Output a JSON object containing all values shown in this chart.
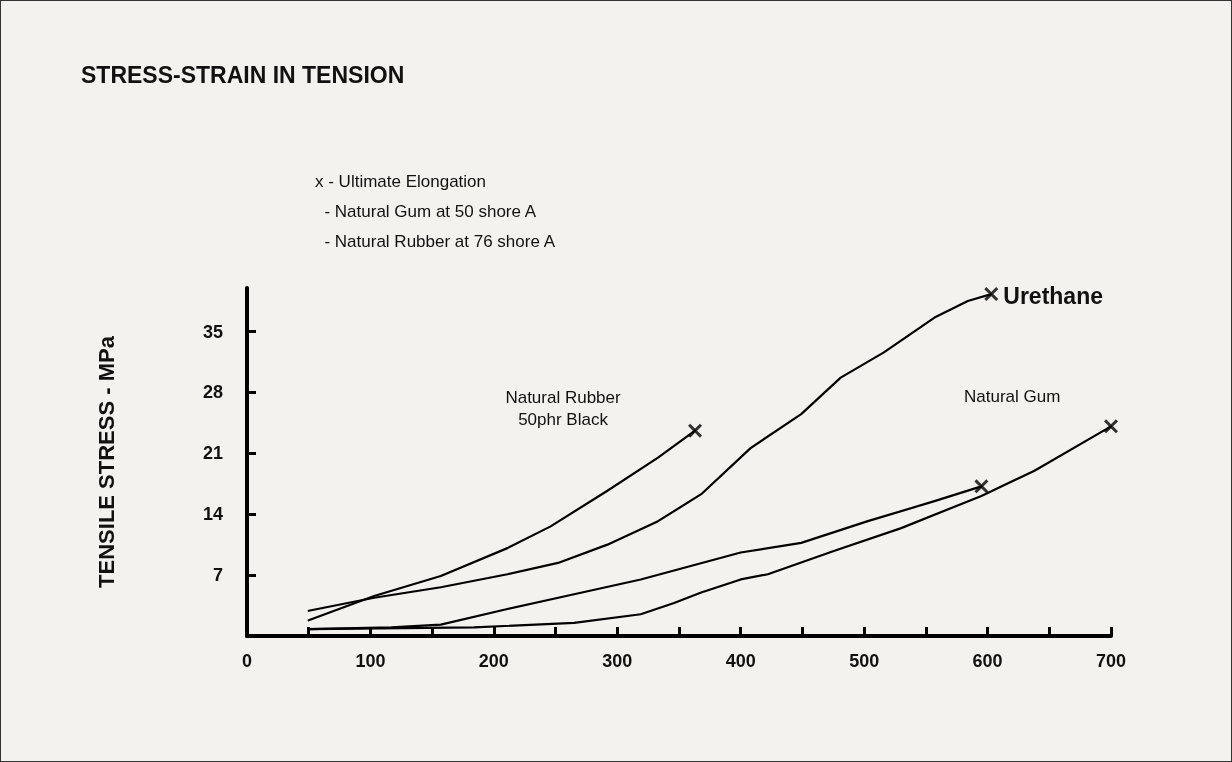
{
  "chart_data": {
    "type": "line",
    "title": "STRESS-STRAIN IN TENSION",
    "ylabel": "TENSILE STRESS - MPa",
    "annotations": [
      "x - Ultimate Elongation",
      "  - Natural Gum at 50 shore A",
      "  - Natural Rubber at 76 shore A"
    ],
    "xlim": [
      0,
      700
    ],
    "xticks": [
      0,
      {
        "value": 50,
        "label": null
      },
      100,
      {
        "value": 150,
        "label": null
      },
      200,
      {
        "value": 250,
        "label": null
      },
      300,
      {
        "value": 350,
        "label": null
      },
      400,
      {
        "value": 450,
        "label": null
      },
      500,
      {
        "value": 550,
        "label": null
      },
      600,
      {
        "value": 650,
        "label": null
      },
      700
    ],
    "ylim": [
      0,
      40
    ],
    "yticks": [
      {
        "value": 0,
        "label": null
      },
      7,
      14,
      21,
      28,
      35
    ],
    "line_style": "solid",
    "grid": false,
    "series": [
      {
        "name": "Natural Rubber\n50phr Black",
        "color": "#000000",
        "x": [
          50,
          103,
          157,
          211,
          246,
          292,
          333,
          363
        ],
        "values": [
          1.8,
          4.6,
          6.9,
          10.1,
          12.6,
          16.7,
          20.5,
          23.6
        ]
      },
      {
        "name": "Urethane",
        "color": "#000000",
        "x": [
          50,
          103,
          157,
          211,
          252,
          292,
          333,
          368,
          408,
          449,
          481,
          516,
          557,
          584,
          603
        ],
        "values": [
          2.9,
          4.4,
          5.6,
          7.1,
          8.4,
          10.5,
          13.2,
          16.3,
          21.6,
          25.5,
          29.7,
          32.6,
          36.6,
          38.5,
          39.3
        ]
      },
      {
        "name": "Natural Gum",
        "color": "#000000",
        "x": [
          50,
          184,
          265,
          319,
          346,
          368,
          400,
          422,
          476,
          530,
          595,
          638,
          700
        ],
        "values": [
          0.8,
          1.0,
          1.5,
          2.5,
          3.8,
          5.0,
          6.5,
          7.1,
          9.8,
          12.4,
          16.1,
          19.0,
          24.1
        ]
      },
      {
        "color": "#000000",
        "x": [
          50,
          117,
          157,
          211,
          265,
          319,
          400,
          449,
          503,
          557,
          595
        ],
        "values": [
          0.8,
          1.0,
          1.3,
          3.1,
          4.8,
          6.5,
          9.6,
          10.7,
          13.2,
          15.5,
          17.2
        ]
      },
      {
        "type": "scatter",
        "marker": "cross",
        "color": "#000000",
        "x": [
          363,
          603,
          700,
          595
        ],
        "values": [
          23.6,
          39.3,
          24.1,
          17.2
        ]
      }
    ]
  }
}
